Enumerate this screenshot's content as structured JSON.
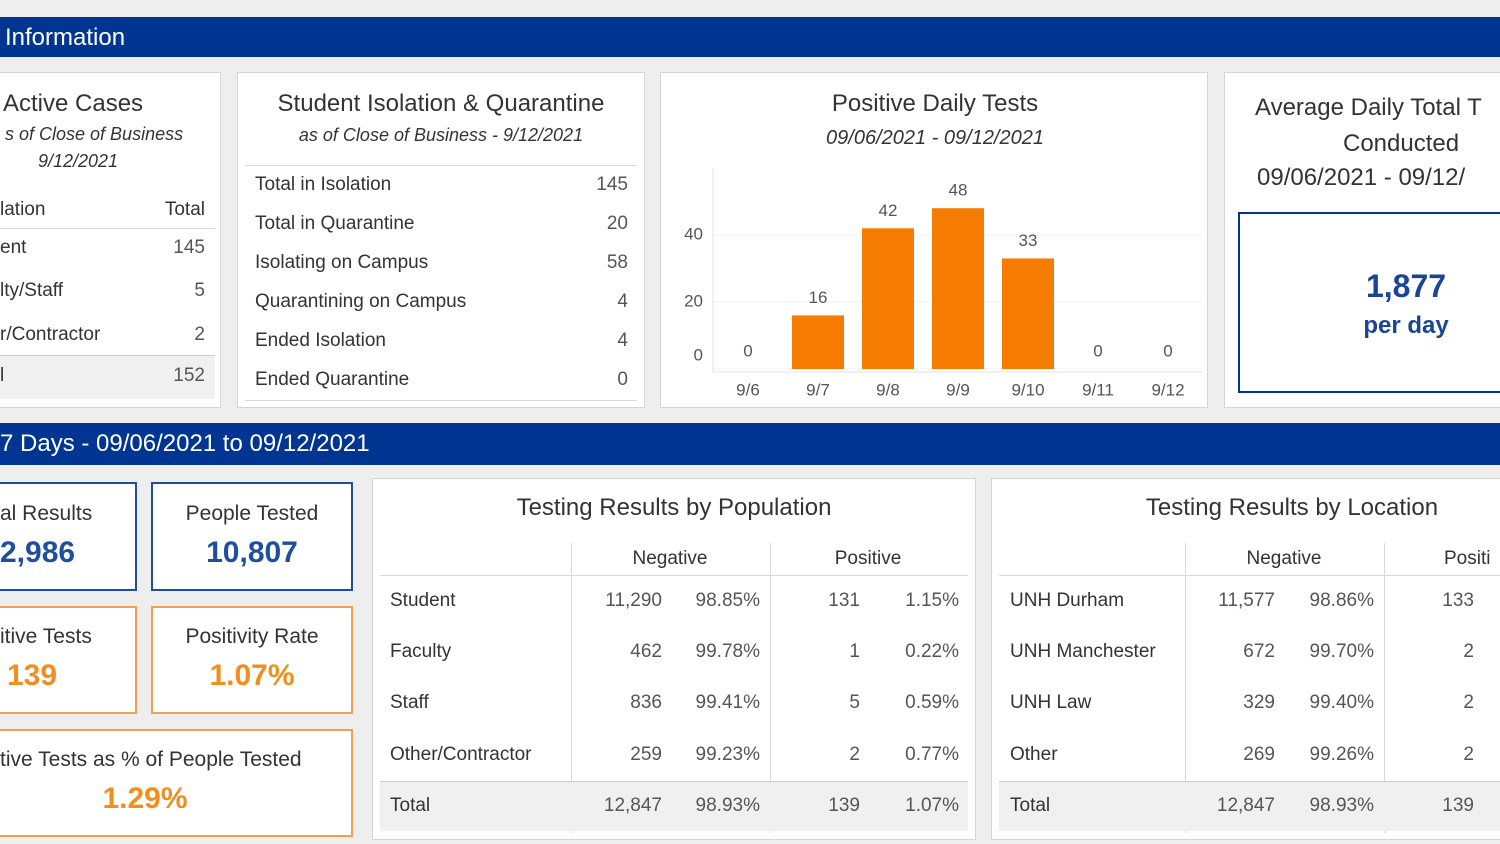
{
  "header": {
    "title": "Information"
  },
  "active_cases": {
    "title": "Active Cases",
    "subtitle": [
      "s of Close of Business",
      "9/12/2021"
    ],
    "columns": [
      "lation",
      "Total"
    ],
    "rows": [
      [
        "ent",
        "145"
      ],
      [
        "lty/Staff",
        "5"
      ],
      [
        "r/Contractor",
        "2"
      ]
    ],
    "total": [
      "l",
      "152"
    ]
  },
  "isolation": {
    "title": "Student Isolation & Quarantine",
    "subtitle": "as of Close of Business - 9/12/2021",
    "rows": [
      [
        "Total in Isolation",
        "145"
      ],
      [
        "Total in Quarantine",
        "20"
      ],
      [
        "Isolating on Campus",
        "58"
      ],
      [
        "Quarantining on Campus",
        "4"
      ],
      [
        "Ended Isolation",
        "4"
      ],
      [
        "Ended Quarantine",
        "0"
      ]
    ]
  },
  "chart_data": {
    "type": "bar",
    "title": "Positive Daily Tests",
    "subtitle": "09/06/2021 - 09/12/2021",
    "categories": [
      "9/6",
      "9/7",
      "9/8",
      "9/9",
      "9/10",
      "9/11",
      "9/12"
    ],
    "values": [
      0,
      16,
      42,
      48,
      33,
      0,
      0
    ],
    "color": "#f57c00",
    "ylim": [
      0,
      60
    ],
    "yticks": [
      0,
      20,
      40
    ],
    "grid": true
  },
  "average": {
    "title": [
      "Average Daily Total T",
      "Conducted",
      "09/06/2021 - 09/12/"
    ],
    "value": "1,877",
    "unit": "per day"
  },
  "period": {
    "title": "7 Days - 09/06/2021 to 09/12/2021"
  },
  "kpis": [
    {
      "label": "al Results",
      "value": "2,986"
    },
    {
      "label": "People Tested",
      "value": "10,807"
    },
    {
      "label": "itive Tests",
      "value": "139"
    },
    {
      "label": "Positivity Rate",
      "value": "1.07%"
    },
    {
      "label": "tive Tests as % of People Tested",
      "value": "1.29%"
    }
  ],
  "population_table": {
    "title": "Testing Results by Population",
    "columns": [
      "Negative",
      "Positive"
    ],
    "rows": [
      [
        "Student",
        "11,290",
        "98.85%",
        "131",
        "1.15%"
      ],
      [
        "Faculty",
        "462",
        "99.78%",
        "1",
        "0.22%"
      ],
      [
        "Staff",
        "836",
        "99.41%",
        "5",
        "0.59%"
      ],
      [
        "Other/Contractor",
        "259",
        "99.23%",
        "2",
        "0.77%"
      ]
    ],
    "total": [
      "Total",
      "12,847",
      "98.93%",
      "139",
      "1.07%"
    ]
  },
  "location_table": {
    "title": "Testing Results by Location",
    "columns": [
      "Negative",
      "Positi"
    ],
    "rows": [
      [
        "UNH Durham",
        "11,577",
        "98.86%",
        "133"
      ],
      [
        "UNH Manchester",
        "672",
        "99.70%",
        "2"
      ],
      [
        "UNH Law",
        "329",
        "99.40%",
        "2"
      ],
      [
        "Other",
        "269",
        "99.26%",
        "2"
      ]
    ],
    "total": [
      "Total",
      "12,847",
      "98.93%",
      "139"
    ]
  }
}
